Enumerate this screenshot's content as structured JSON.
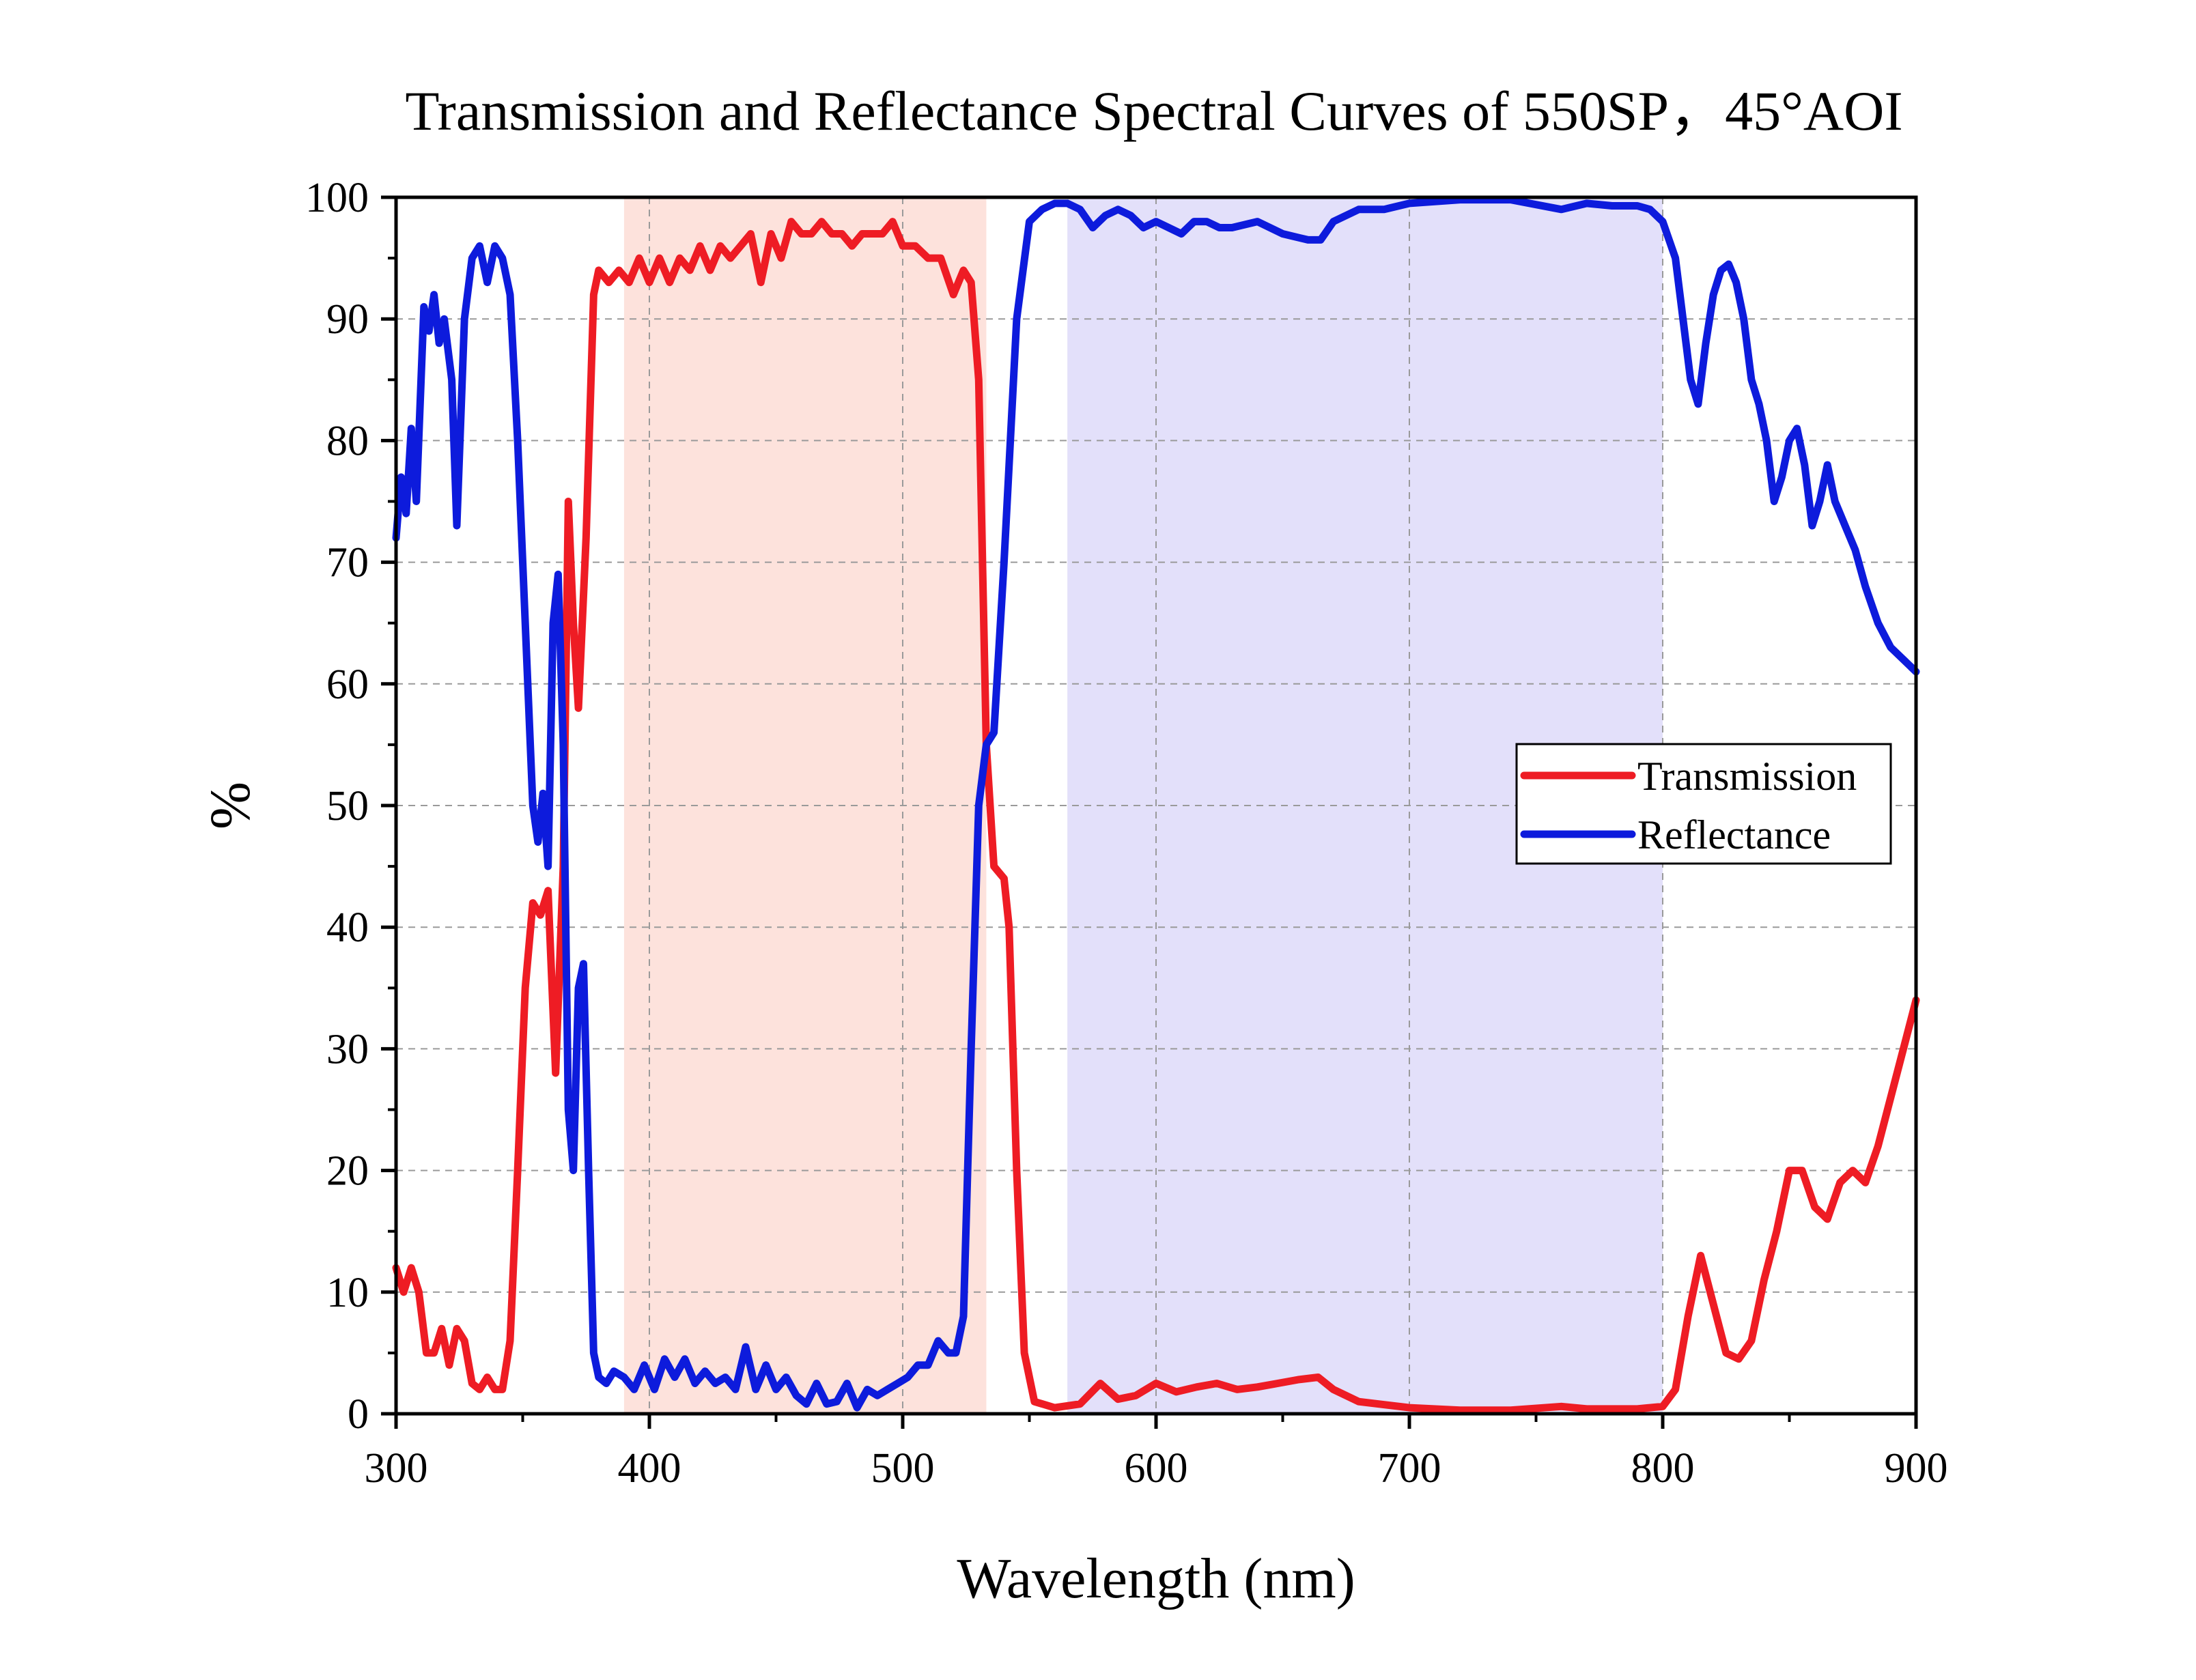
{
  "chart_data": {
    "type": "line",
    "title": "Transmission and Reflectance Spectral Curves of 550SP，45°AOI",
    "xlabel": "Wavelength (nm)",
    "ylabel": "%",
    "xlim": [
      300,
      900
    ],
    "ylim": [
      0,
      100
    ],
    "x_ticks": [
      300,
      400,
      500,
      600,
      700,
      800,
      900
    ],
    "y_ticks": [
      0,
      10,
      20,
      30,
      40,
      50,
      60,
      70,
      80,
      90,
      100
    ],
    "grid": "dashed",
    "legend_position": "right-middle",
    "shaded_regions": [
      {
        "x_range": [
          390,
          533
        ],
        "color": "#fde2dc"
      },
      {
        "x_range": [
          565,
          800
        ],
        "color": "#e3e0fa"
      }
    ],
    "series": [
      {
        "name": "Transmission",
        "color": "#ee1c24",
        "points": [
          [
            300,
            12
          ],
          [
            303,
            10
          ],
          [
            306,
            12
          ],
          [
            309,
            10
          ],
          [
            312,
            5
          ],
          [
            315,
            5
          ],
          [
            318,
            7
          ],
          [
            321,
            4
          ],
          [
            324,
            7
          ],
          [
            327,
            6
          ],
          [
            330,
            2.5
          ],
          [
            333,
            2
          ],
          [
            336,
            3
          ],
          [
            339,
            2
          ],
          [
            342,
            2
          ],
          [
            345,
            6
          ],
          [
            348,
            20
          ],
          [
            351,
            35
          ],
          [
            354,
            42
          ],
          [
            357,
            41
          ],
          [
            360,
            43
          ],
          [
            363,
            28
          ],
          [
            366,
            45
          ],
          [
            368,
            75
          ],
          [
            370,
            65
          ],
          [
            372,
            58
          ],
          [
            375,
            72
          ],
          [
            378,
            92
          ],
          [
            380,
            94
          ],
          [
            384,
            93
          ],
          [
            388,
            94
          ],
          [
            392,
            93
          ],
          [
            396,
            95
          ],
          [
            400,
            93
          ],
          [
            404,
            95
          ],
          [
            408,
            93
          ],
          [
            412,
            95
          ],
          [
            416,
            94
          ],
          [
            420,
            96
          ],
          [
            424,
            94
          ],
          [
            428,
            96
          ],
          [
            432,
            95
          ],
          [
            436,
            96
          ],
          [
            440,
            97
          ],
          [
            444,
            93
          ],
          [
            448,
            97
          ],
          [
            452,
            95
          ],
          [
            456,
            98
          ],
          [
            460,
            97
          ],
          [
            464,
            97
          ],
          [
            468,
            98
          ],
          [
            472,
            97
          ],
          [
            476,
            97
          ],
          [
            480,
            96
          ],
          [
            484,
            97
          ],
          [
            488,
            97
          ],
          [
            492,
            97
          ],
          [
            496,
            98
          ],
          [
            500,
            96
          ],
          [
            505,
            96
          ],
          [
            510,
            95
          ],
          [
            515,
            95
          ],
          [
            520,
            92
          ],
          [
            524,
            94
          ],
          [
            527,
            93
          ],
          [
            530,
            85
          ],
          [
            533,
            55
          ],
          [
            536,
            45
          ],
          [
            540,
            44
          ],
          [
            542,
            40
          ],
          [
            545,
            20
          ],
          [
            548,
            5
          ],
          [
            552,
            1
          ],
          [
            560,
            0.5
          ],
          [
            570,
            0.8
          ],
          [
            578,
            2.5
          ],
          [
            585,
            1.2
          ],
          [
            592,
            1.5
          ],
          [
            600,
            2.5
          ],
          [
            608,
            1.8
          ],
          [
            616,
            2.2
          ],
          [
            624,
            2.5
          ],
          [
            632,
            2
          ],
          [
            640,
            2.2
          ],
          [
            648,
            2.5
          ],
          [
            656,
            2.8
          ],
          [
            664,
            3
          ],
          [
            670,
            2
          ],
          [
            680,
            1
          ],
          [
            700,
            0.5
          ],
          [
            720,
            0.3
          ],
          [
            740,
            0.3
          ],
          [
            760,
            0.6
          ],
          [
            770,
            0.4
          ],
          [
            790,
            0.4
          ],
          [
            800,
            0.6
          ],
          [
            805,
            2
          ],
          [
            810,
            8
          ],
          [
            815,
            13
          ],
          [
            820,
            9
          ],
          [
            825,
            5
          ],
          [
            830,
            4.5
          ],
          [
            835,
            6
          ],
          [
            840,
            11
          ],
          [
            845,
            15
          ],
          [
            850,
            20
          ],
          [
            855,
            20
          ],
          [
            860,
            17
          ],
          [
            865,
            16
          ],
          [
            870,
            19
          ],
          [
            875,
            20
          ],
          [
            880,
            19
          ],
          [
            885,
            22
          ],
          [
            890,
            26
          ],
          [
            895,
            30
          ],
          [
            900,
            34
          ]
        ]
      },
      {
        "name": "Reflectance",
        "color": "#0d1bdc",
        "points": [
          [
            300,
            72
          ],
          [
            302,
            77
          ],
          [
            304,
            74
          ],
          [
            306,
            81
          ],
          [
            308,
            75
          ],
          [
            311,
            91
          ],
          [
            313,
            89
          ],
          [
            315,
            92
          ],
          [
            317,
            88
          ],
          [
            319,
            90
          ],
          [
            322,
            85
          ],
          [
            324,
            73
          ],
          [
            327,
            90
          ],
          [
            330,
            95
          ],
          [
            333,
            96
          ],
          [
            336,
            93
          ],
          [
            339,
            96
          ],
          [
            342,
            95
          ],
          [
            345,
            92
          ],
          [
            348,
            80
          ],
          [
            351,
            65
          ],
          [
            354,
            50
          ],
          [
            356,
            47
          ],
          [
            358,
            51
          ],
          [
            360,
            45
          ],
          [
            362,
            65
          ],
          [
            364,
            69
          ],
          [
            366,
            55
          ],
          [
            368,
            25
          ],
          [
            370,
            20
          ],
          [
            372,
            35
          ],
          [
            374,
            37
          ],
          [
            376,
            20
          ],
          [
            378,
            5
          ],
          [
            380,
            3
          ],
          [
            383,
            2.5
          ],
          [
            386,
            3.5
          ],
          [
            390,
            3
          ],
          [
            394,
            2
          ],
          [
            398,
            4
          ],
          [
            402,
            2
          ],
          [
            406,
            4.5
          ],
          [
            410,
            3
          ],
          [
            414,
            4.5
          ],
          [
            418,
            2.5
          ],
          [
            422,
            3.5
          ],
          [
            426,
            2.5
          ],
          [
            430,
            3
          ],
          [
            434,
            2
          ],
          [
            438,
            5.5
          ],
          [
            442,
            2
          ],
          [
            446,
            4
          ],
          [
            450,
            2
          ],
          [
            454,
            3
          ],
          [
            458,
            1.5
          ],
          [
            462,
            0.8
          ],
          [
            466,
            2.5
          ],
          [
            470,
            0.8
          ],
          [
            474,
            1
          ],
          [
            478,
            2.5
          ],
          [
            482,
            0.5
          ],
          [
            486,
            2
          ],
          [
            490,
            1.5
          ],
          [
            494,
            2
          ],
          [
            498,
            2.5
          ],
          [
            502,
            3
          ],
          [
            506,
            4
          ],
          [
            510,
            4
          ],
          [
            514,
            6
          ],
          [
            518,
            5
          ],
          [
            521,
            5
          ],
          [
            524,
            8
          ],
          [
            527,
            30
          ],
          [
            530,
            50
          ],
          [
            533,
            55
          ],
          [
            536,
            56
          ],
          [
            540,
            70
          ],
          [
            545,
            90
          ],
          [
            550,
            98
          ],
          [
            555,
            99
          ],
          [
            560,
            99.5
          ],
          [
            565,
            99.5
          ],
          [
            570,
            99
          ],
          [
            575,
            97.5
          ],
          [
            580,
            98.5
          ],
          [
            585,
            99
          ],
          [
            590,
            98.5
          ],
          [
            595,
            97.5
          ],
          [
            600,
            98
          ],
          [
            605,
            97.5
          ],
          [
            610,
            97
          ],
          [
            615,
            98
          ],
          [
            620,
            98
          ],
          [
            625,
            97.5
          ],
          [
            630,
            97.5
          ],
          [
            640,
            98
          ],
          [
            650,
            97
          ],
          [
            660,
            96.5
          ],
          [
            665,
            96.5
          ],
          [
            670,
            98
          ],
          [
            680,
            99
          ],
          [
            690,
            99
          ],
          [
            700,
            99.5
          ],
          [
            720,
            99.8
          ],
          [
            740,
            99.8
          ],
          [
            760,
            99
          ],
          [
            770,
            99.5
          ],
          [
            780,
            99.3
          ],
          [
            790,
            99.3
          ],
          [
            795,
            99
          ],
          [
            800,
            98
          ],
          [
            805,
            95
          ],
          [
            808,
            90
          ],
          [
            811,
            85
          ],
          [
            814,
            83
          ],
          [
            817,
            88
          ],
          [
            820,
            92
          ],
          [
            823,
            94
          ],
          [
            826,
            94.5
          ],
          [
            829,
            93
          ],
          [
            832,
            90
          ],
          [
            835,
            85
          ],
          [
            838,
            83
          ],
          [
            841,
            80
          ],
          [
            844,
            75
          ],
          [
            847,
            77
          ],
          [
            850,
            80
          ],
          [
            853,
            81
          ],
          [
            856,
            78
          ],
          [
            859,
            73
          ],
          [
            862,
            75
          ],
          [
            865,
            78
          ],
          [
            868,
            75
          ],
          [
            872,
            73
          ],
          [
            876,
            71
          ],
          [
            880,
            68
          ],
          [
            885,
            65
          ],
          [
            890,
            63
          ],
          [
            895,
            62
          ],
          [
            900,
            61
          ]
        ]
      }
    ]
  }
}
